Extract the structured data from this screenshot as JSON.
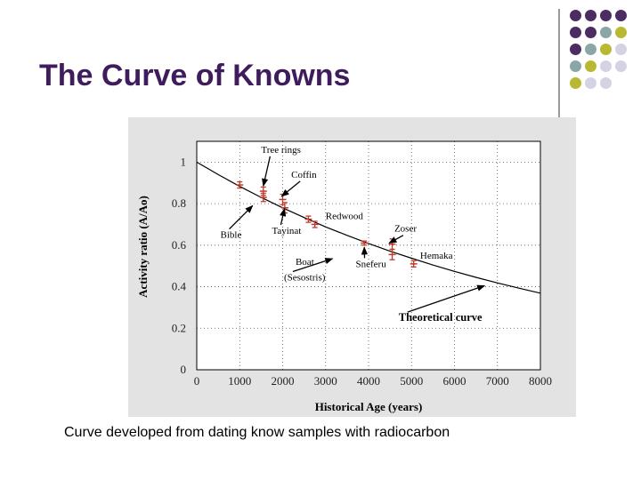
{
  "slide": {
    "title": "The Curve of Knowns",
    "caption": "Curve developed from dating know samples with radiocarbon"
  },
  "decoration": {
    "dot_grid": [
      [
        "#4b2d63",
        "#4b2d63",
        "#4b2d63",
        "#4b2d63"
      ],
      [
        "#4b2d63",
        "#4b2d63",
        "#8aa6a6",
        "#b8b832"
      ],
      [
        "#4b2d63",
        "#8aa6a6",
        "#b8b832",
        "#d3d3e3"
      ],
      [
        "#8aa6a6",
        "#b8b832",
        "#d3d3e3",
        "#d3d3e3"
      ],
      [
        "#b8b832",
        "#d3d3e3",
        "#d3d3e3",
        ""
      ]
    ],
    "colors": {
      "purple": "#4b2d63",
      "teal": "#8aa6a6",
      "olive": "#b8b832",
      "lavender": "#d3d3e3"
    }
  },
  "chart_data": {
    "type": "scatter",
    "title": "",
    "xlabel": "Historical Age (years)",
    "ylabel": "Activity ratio (A/Ao)",
    "xlim": [
      0,
      8000
    ],
    "ylim": [
      0,
      1.1
    ],
    "xticks": [
      0,
      1000,
      2000,
      3000,
      4000,
      5000,
      6000,
      7000,
      8000
    ],
    "yticks": [
      {
        "v": 0,
        "label": "0"
      },
      {
        "v": 0.2,
        "label": "0.2"
      },
      {
        "v": 0.4,
        "label": "0.4"
      },
      {
        "v": 0.6,
        "label": "0.6"
      },
      {
        "v": 0.8,
        "label": "0.8"
      },
      {
        "v": 1,
        "label": "1"
      }
    ],
    "grid": true,
    "theoretical_curve": {
      "label": "Theoretical curve",
      "function": "exp(-t/8033)",
      "x": [
        0,
        500,
        1000,
        1500,
        2000,
        2500,
        3000,
        3500,
        4000,
        4500,
        5000,
        5500,
        6000,
        6500,
        7000,
        7500,
        8000
      ],
      "y": [
        1.0,
        0.94,
        0.883,
        0.83,
        0.78,
        0.733,
        0.688,
        0.647,
        0.608,
        0.571,
        0.537,
        0.504,
        0.474,
        0.445,
        0.418,
        0.393,
        0.369
      ]
    },
    "samples": [
      {
        "x": 1000,
        "y": 0.89,
        "err": 0.015
      },
      {
        "x": 1550,
        "y": 0.86,
        "err": 0.02
      },
      {
        "x": 1550,
        "y": 0.83,
        "err": 0.02
      },
      {
        "x": 2000,
        "y": 0.82,
        "err": 0.025
      },
      {
        "x": 2050,
        "y": 0.78,
        "err": 0.025
      },
      {
        "x": 2600,
        "y": 0.725,
        "err": 0.015
      },
      {
        "x": 2750,
        "y": 0.7,
        "err": 0.015
      },
      {
        "x": 3900,
        "y": 0.61,
        "err": 0.01
      },
      {
        "x": 4550,
        "y": 0.605,
        "err": 0.025
      },
      {
        "x": 4550,
        "y": 0.555,
        "err": 0.025
      },
      {
        "x": 5050,
        "y": 0.51,
        "err": 0.015
      }
    ],
    "annotations": [
      {
        "text": "Tree rings",
        "tx": 1500,
        "ty": 1.045,
        "ax": 1550,
        "ay": 0.885
      },
      {
        "text": "Coffin",
        "tx": 2200,
        "ty": 0.925,
        "ax": 1975,
        "ay": 0.835
      },
      {
        "text": "Bible",
        "tx": 550,
        "ty": 0.635,
        "ax": 1300,
        "ay": 0.79
      },
      {
        "text": "Tayinat",
        "tx": 1750,
        "ty": 0.655,
        "ax": 2040,
        "ay": 0.775
      },
      {
        "text": "Redwood",
        "tx": 3000,
        "ty": 0.725
      },
      {
        "text": "Zoser",
        "tx": 4600,
        "ty": 0.665,
        "ax": 4480,
        "ay": 0.61
      },
      {
        "text": "Hemaka",
        "tx": 5200,
        "ty": 0.535
      },
      {
        "text": "Boat",
        "tx": 2300,
        "ty": 0.505
      },
      {
        "text": "(Sesostris)",
        "tx": 2030,
        "ty": 0.43,
        "ax": 3160,
        "ay": 0.535
      },
      {
        "text": "Sneferu",
        "tx": 3700,
        "ty": 0.495,
        "ax": 3900,
        "ay": 0.59
      },
      {
        "text": "Theoretical curve",
        "tx": 4700,
        "ty": 0.235,
        "ax": 6700,
        "ay": 0.405,
        "bold": true
      }
    ]
  }
}
